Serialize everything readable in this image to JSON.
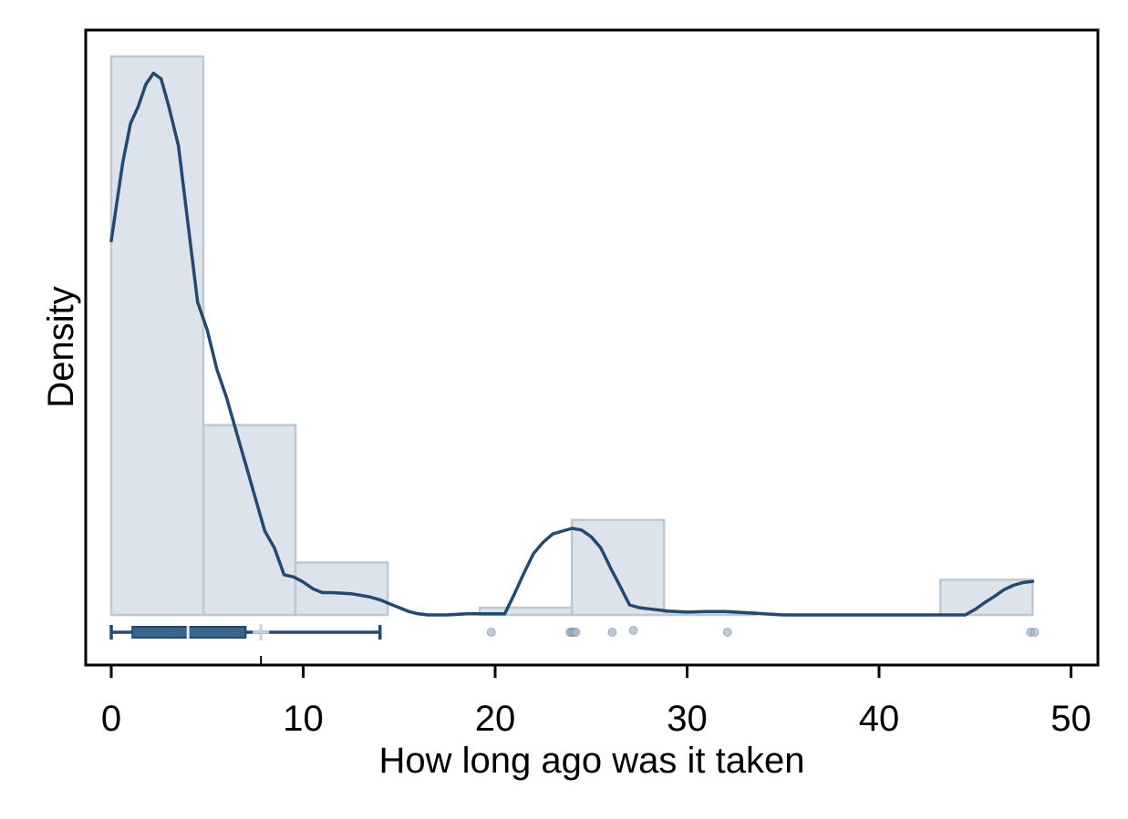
{
  "chart_data": {
    "type": "histogram",
    "xlabel": "How long ago was it taken",
    "ylabel": "Density",
    "xlim": [
      -1.4,
      51.4
    ],
    "xticks": [
      0,
      10,
      20,
      30,
      40,
      50
    ],
    "xtick_labels": [
      "0",
      "10",
      "20",
      "30",
      "40",
      "50"
    ],
    "grid": false,
    "histogram": {
      "bins": [
        {
          "start": 0,
          "end": 4.8,
          "height": 1.0
        },
        {
          "start": 4.8,
          "end": 9.6,
          "height": 0.34
        },
        {
          "start": 9.6,
          "end": 14.4,
          "height": 0.094
        },
        {
          "start": 19.2,
          "end": 24.0,
          "height": 0.013
        },
        {
          "start": 24.0,
          "end": 28.8,
          "height": 0.17
        },
        {
          "start": 28.8,
          "end": 33.6,
          "height": 0.005
        },
        {
          "start": 43.2,
          "end": 48.0,
          "height": 0.063
        }
      ]
    },
    "density_curve": {
      "x": [
        0,
        0.3,
        0.6,
        1.0,
        1.4,
        1.8,
        2.2,
        2.6,
        3.0,
        3.5,
        4.0,
        4.5,
        5.0,
        5.5,
        6.0,
        6.5,
        7.0,
        7.5,
        8.0,
        8.5,
        9.0,
        9.5,
        10.0,
        10.5,
        11.0,
        11.5,
        12.0,
        12.5,
        13.0,
        13.5,
        14.0,
        14.5,
        15.0,
        15.5,
        16.0,
        16.5,
        17.0,
        17.5,
        18.0,
        18.5,
        19.0,
        19.5,
        20.0,
        20.5,
        21.0,
        21.5,
        22.0,
        22.5,
        23.0,
        23.5,
        24.0,
        24.5,
        25.0,
        25.5,
        26.0,
        26.5,
        27.0,
        27.5,
        28.0,
        29.0,
        30.0,
        31.0,
        32.0,
        33.0,
        34.0,
        35.0,
        35.5,
        40.0,
        44.5,
        45.0,
        45.5,
        46.0,
        46.5,
        47.0,
        47.5,
        48.0
      ],
      "y": [
        0.67,
        0.74,
        0.81,
        0.88,
        0.91,
        0.95,
        0.97,
        0.96,
        0.91,
        0.84,
        0.7,
        0.56,
        0.51,
        0.44,
        0.39,
        0.33,
        0.27,
        0.21,
        0.15,
        0.12,
        0.072,
        0.068,
        0.059,
        0.047,
        0.04,
        0.04,
        0.039,
        0.038,
        0.035,
        0.032,
        0.027,
        0.02,
        0.013,
        0.006,
        0.002,
        0.0,
        0.0,
        0.0,
        0.001,
        0.002,
        0.002,
        0.002,
        0.002,
        0.002,
        0.037,
        0.075,
        0.11,
        0.13,
        0.145,
        0.15,
        0.155,
        0.152,
        0.14,
        0.12,
        0.085,
        0.052,
        0.018,
        0.013,
        0.011,
        0.007,
        0.005,
        0.006,
        0.006,
        0.004,
        0.002,
        0.0,
        0.0,
        0.0,
        0.0,
        0.01,
        0.022,
        0.033,
        0.045,
        0.053,
        0.058,
        0.06
      ]
    },
    "boxplot": {
      "whisker_low": 0,
      "q1": 1.1,
      "median": 4.0,
      "q3": 7.0,
      "whisker_high": 14,
      "mean": 7.8
    },
    "outliers": [
      19.8,
      23.9,
      24.0,
      24.1,
      24.2,
      26.1,
      27.2,
      32.1,
      47.9,
      48.1
    ],
    "colors": {
      "bar_fill": "#dde3ea",
      "bar_stroke": "#bcc8d4",
      "curve": "#24496e",
      "box_fill": "#3a6489",
      "box_stroke": "#24496e",
      "median_line": "#e5eaef",
      "mean_marker": "#c8d2dc",
      "outlier": "#a9b8c7"
    }
  }
}
